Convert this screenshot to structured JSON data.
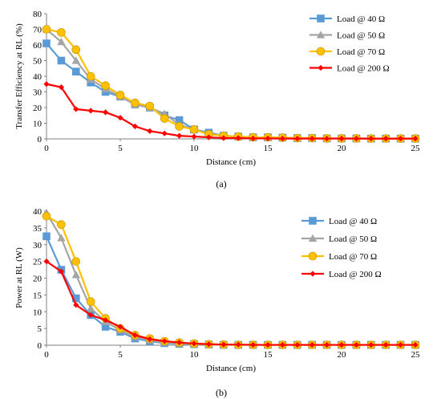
{
  "chart_data": [
    {
      "type": "line",
      "caption": "(a)",
      "xlabel": "Distance (cm)",
      "ylabel": "Transfer Efficiency at RL (%)",
      "xlim": [
        0,
        25
      ],
      "ylim": [
        0,
        80
      ],
      "xticks": [
        0,
        5,
        10,
        15,
        20,
        25
      ],
      "yticks": [
        0,
        10,
        20,
        30,
        40,
        50,
        60,
        70,
        80
      ],
      "grid": false,
      "legend_position": "top-right",
      "x": [
        0,
        1,
        2,
        3,
        4,
        5,
        6,
        7,
        8,
        9,
        10,
        11,
        12,
        13,
        14,
        15,
        16,
        17,
        18,
        19,
        20,
        21,
        22,
        23,
        24,
        25
      ],
      "series": [
        {
          "name": "Load @ 40 Ω",
          "color": "#5B9BD5",
          "marker": "square",
          "values": [
            61,
            50,
            43,
            36,
            30,
            27,
            22,
            20,
            15,
            12,
            6,
            4,
            2,
            1.5,
            1,
            1,
            0.8,
            0.5,
            0.5,
            0.3,
            0.3,
            0.3,
            0.2,
            0.2,
            0.2,
            0.2
          ]
        },
        {
          "name": "Load @ 50 Ω",
          "color": "#A5A5A5",
          "marker": "triangle",
          "values": [
            70,
            62,
            50,
            38,
            32,
            27,
            22,
            20,
            16,
            9,
            6,
            3,
            2,
            1.5,
            1,
            1,
            0.8,
            0.5,
            0.5,
            0.3,
            0.3,
            0.3,
            0.2,
            0.2,
            0.2,
            0.2
          ]
        },
        {
          "name": "Load @ 70 Ω",
          "color": "#FFC000",
          "marker": "circle",
          "values": [
            70,
            68,
            57,
            40,
            34,
            28,
            23,
            21,
            13,
            8,
            6,
            3,
            2,
            1.5,
            1,
            1,
            0.8,
            0.5,
            0.5,
            0.3,
            0.3,
            0.3,
            0.2,
            0.2,
            0.2,
            0.2
          ]
        },
        {
          "name": "Load @ 200 Ω",
          "color": "#FF0000",
          "marker": "diamond",
          "values": [
            35,
            33,
            19,
            18,
            17,
            13.5,
            8,
            5,
            3.5,
            2,
            1.5,
            1,
            0.5,
            0.5,
            0.3,
            0.3,
            0.2,
            0.2,
            0.2,
            0.2,
            0.2,
            0.2,
            0.2,
            0.2,
            0.2,
            0.2
          ]
        }
      ]
    },
    {
      "type": "line",
      "caption": "(b)",
      "xlabel": "Distance (cm)",
      "ylabel": "Power at RL (W)",
      "xlim": [
        0,
        25
      ],
      "ylim": [
        0,
        40
      ],
      "xticks": [
        0,
        5,
        10,
        15,
        20,
        25
      ],
      "yticks": [
        0,
        5,
        10,
        15,
        20,
        25,
        30,
        35,
        40
      ],
      "grid": false,
      "legend_position": "top-right",
      "x": [
        0,
        1,
        2,
        3,
        4,
        5,
        6,
        7,
        8,
        9,
        10,
        11,
        12,
        13,
        14,
        15,
        16,
        17,
        18,
        19,
        20,
        21,
        22,
        23,
        24,
        25
      ],
      "series": [
        {
          "name": "Load @ 40 Ω",
          "color": "#5B9BD5",
          "marker": "square",
          "values": [
            32.5,
            22.5,
            14,
            9,
            5.5,
            4,
            2,
            1.2,
            0.6,
            0.4,
            0.3,
            0.2,
            0.1,
            0.1,
            0.1,
            0.1,
            0.1,
            0.1,
            0.1,
            0.1,
            0.1,
            0.1,
            0.1,
            0.1,
            0.1,
            0.1
          ]
        },
        {
          "name": "Load @ 50 Ω",
          "color": "#A5A5A5",
          "marker": "triangle",
          "values": [
            39.5,
            32,
            21,
            11,
            7,
            4.5,
            2.5,
            1.5,
            0.8,
            0.5,
            0.3,
            0.2,
            0.1,
            0.1,
            0.1,
            0.1,
            0.1,
            0.1,
            0.1,
            0.1,
            0.1,
            0.1,
            0.1,
            0.1,
            0.1,
            0.1
          ]
        },
        {
          "name": "Load @ 70 Ω",
          "color": "#FFC000",
          "marker": "circle",
          "values": [
            38.5,
            36,
            25,
            13,
            8,
            5,
            3,
            2,
            1.2,
            0.8,
            0.5,
            0.3,
            0.2,
            0.1,
            0.1,
            0.1,
            0.1,
            0.1,
            0.1,
            0.1,
            0.1,
            0.1,
            0.1,
            0.1,
            0.1,
            0.1
          ]
        },
        {
          "name": "Load @ 200 Ω",
          "color": "#FF0000",
          "marker": "diamond",
          "values": [
            25,
            22,
            12,
            9,
            7.5,
            5.5,
            3,
            1.8,
            1.2,
            0.8,
            0.5,
            0.3,
            0.2,
            0.2,
            0.1,
            0.1,
            0.1,
            0.1,
            0.1,
            0.1,
            0.1,
            0.1,
            0.1,
            0.1,
            0.1,
            0.1
          ]
        }
      ]
    }
  ]
}
